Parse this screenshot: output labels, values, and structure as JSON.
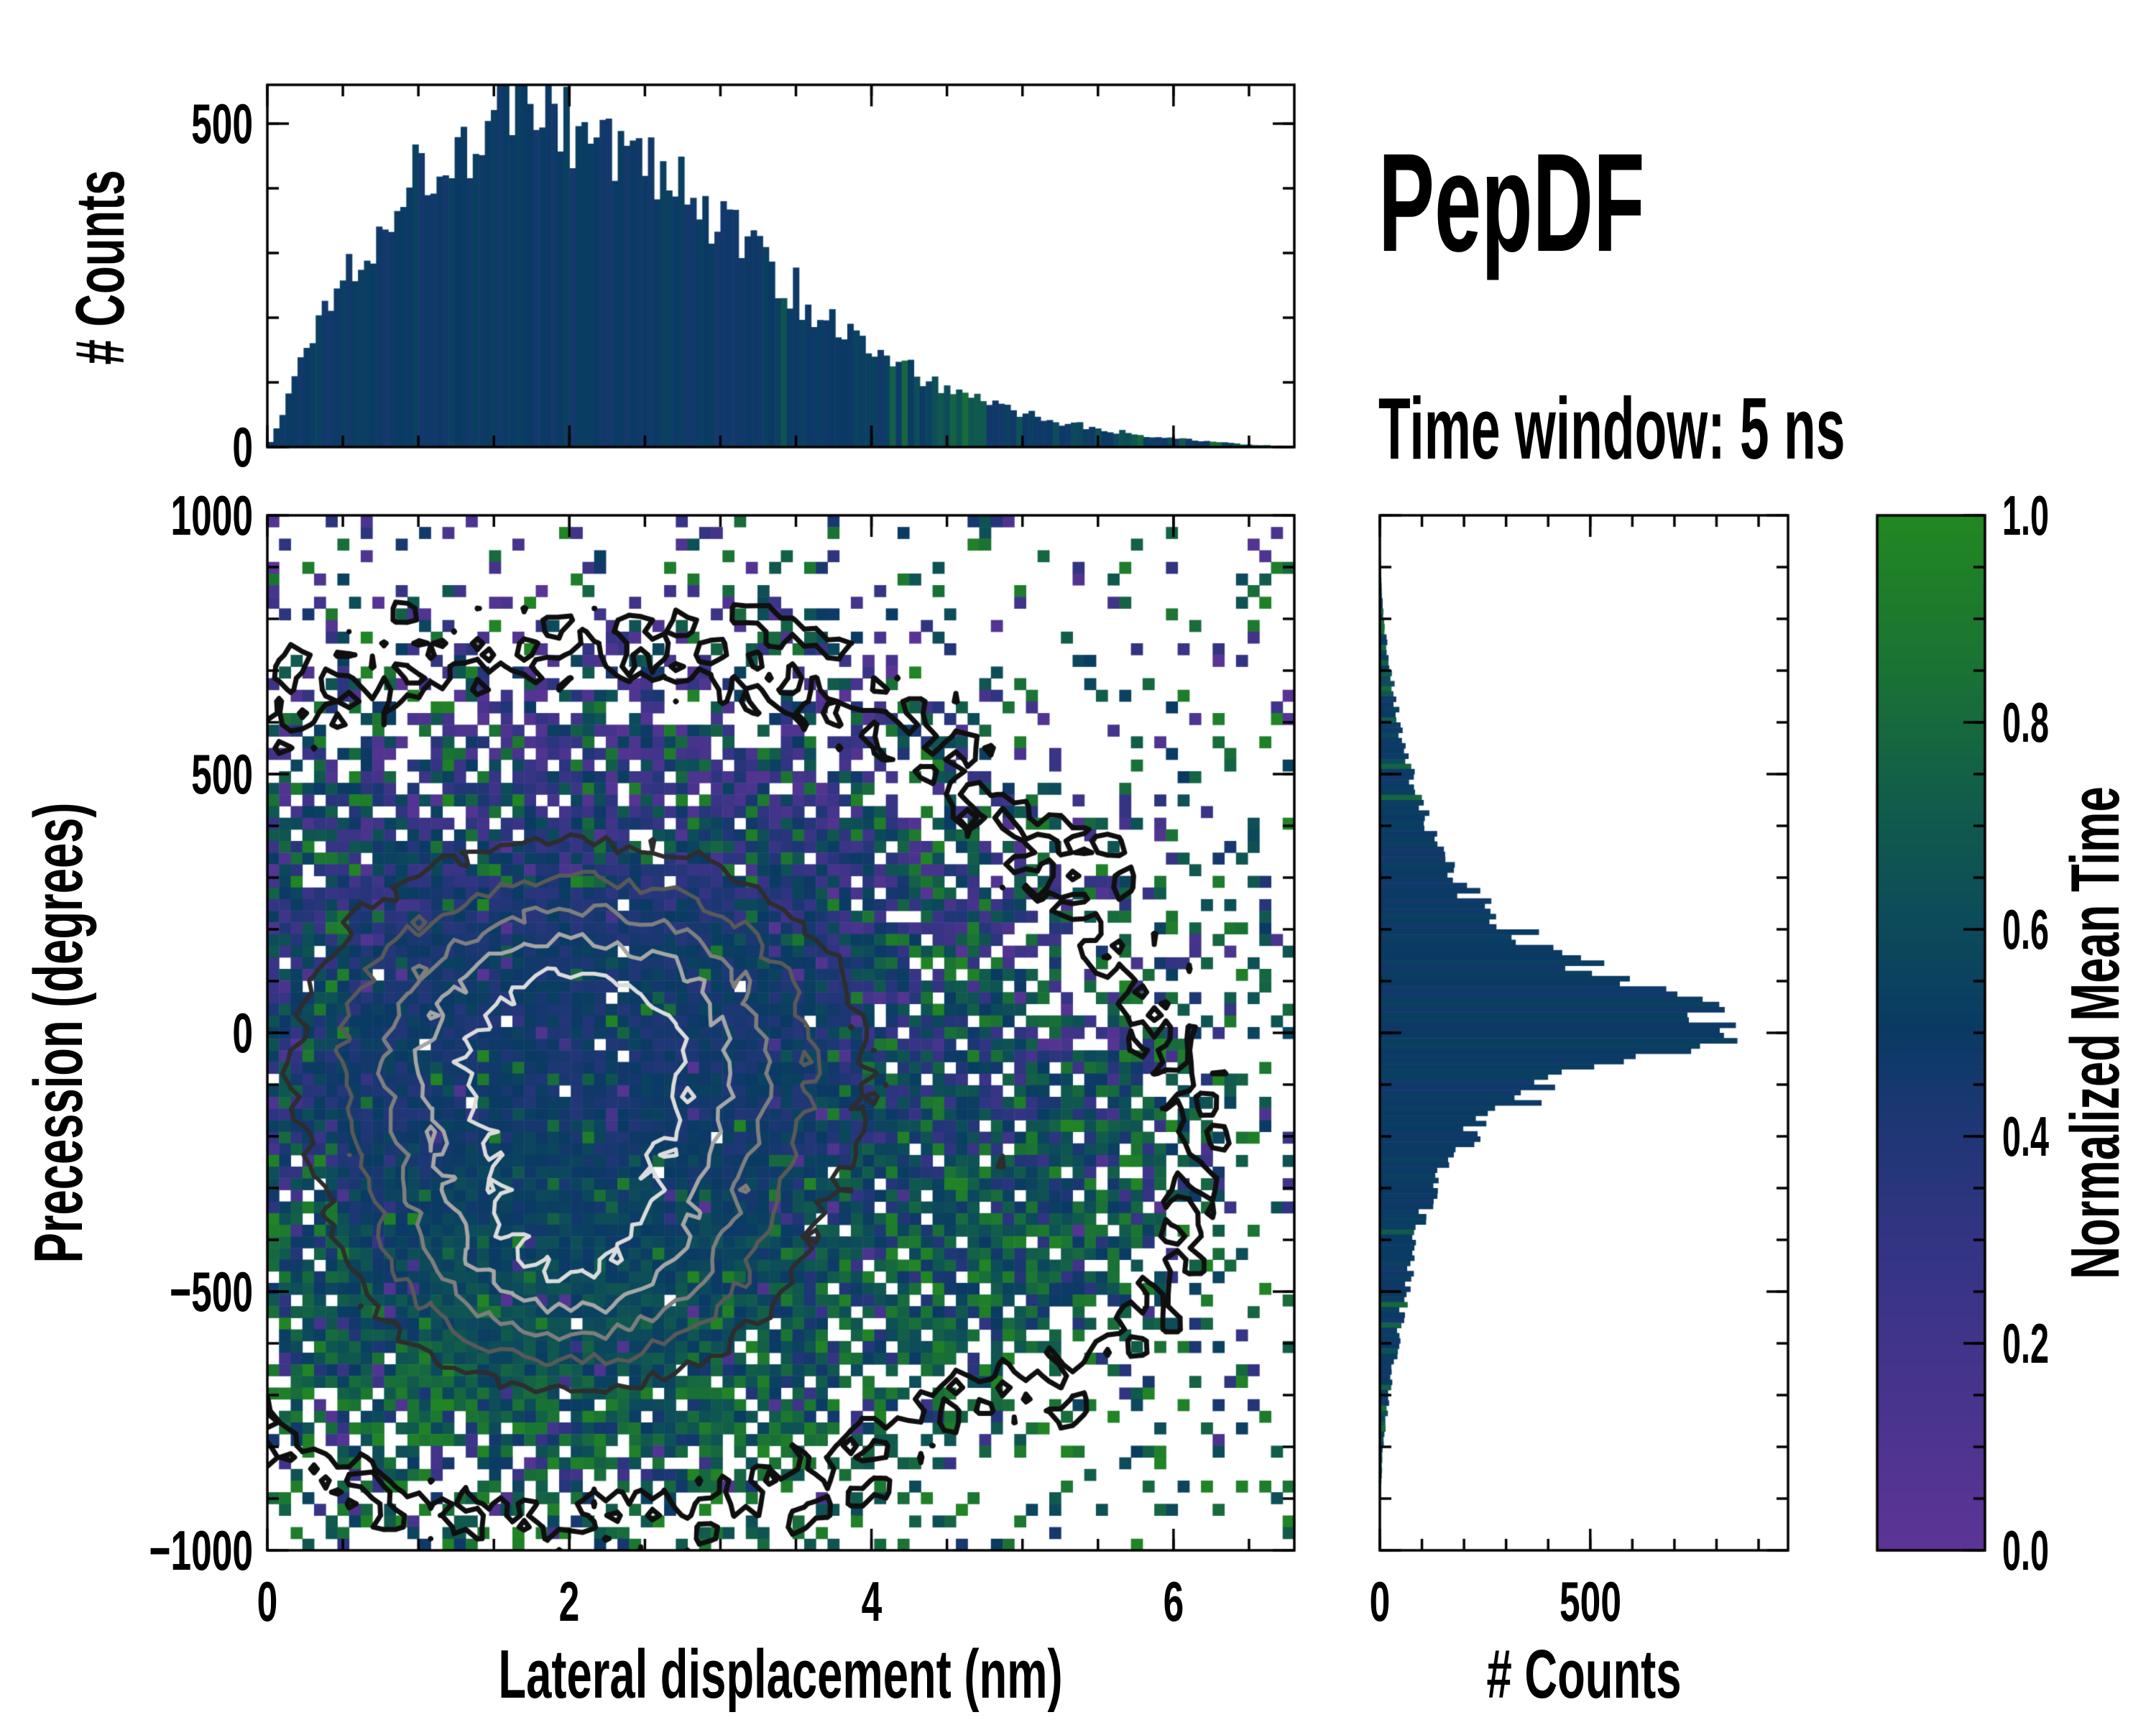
{
  "figure": {
    "title": "PepDF",
    "subtitle": "Time window: 5 ns",
    "background": "#ffffff",
    "frame_color": "#000000"
  },
  "colormap": {
    "stops": [
      {
        "t": 0.0,
        "color": "#5c3496"
      },
      {
        "t": 0.15,
        "color": "#47348c"
      },
      {
        "t": 0.3,
        "color": "#333483"
      },
      {
        "t": 0.42,
        "color": "#1c3773"
      },
      {
        "t": 0.5,
        "color": "#0a3a64"
      },
      {
        "t": 0.62,
        "color": "#0d4d59"
      },
      {
        "t": 0.72,
        "color": "#115c4b"
      },
      {
        "t": 0.85,
        "color": "#1a7235"
      },
      {
        "t": 1.0,
        "color": "#228722"
      }
    ]
  },
  "colorbar": {
    "label": "Normalized Mean Time",
    "ticks": [
      {
        "v": 1.0,
        "label": "1.0"
      },
      {
        "v": 0.8,
        "label": "0.8"
      },
      {
        "v": 0.6,
        "label": "0.6"
      },
      {
        "v": 0.4,
        "label": "0.4"
      },
      {
        "v": 0.2,
        "label": "0.2"
      },
      {
        "v": 0.0,
        "label": "0.0"
      }
    ],
    "minor_step": 0.05,
    "range": [
      0.0,
      1.0
    ]
  },
  "chart_data": [
    {
      "id": "top_histogram",
      "type": "bar",
      "orientation": "vertical",
      "ylabel": "# Counts",
      "xlim": [
        0,
        6.8
      ],
      "ylim": [
        0,
        560
      ],
      "bins": 170,
      "yticks": [
        {
          "v": 0,
          "label": "0"
        },
        {
          "v": 500,
          "label": "500"
        }
      ],
      "xticks": [
        {
          "v": 0
        },
        {
          "v": 2
        },
        {
          "v": 4
        },
        {
          "v": 6
        }
      ],
      "x_minor_step": 0.5,
      "y_minor_step": 100,
      "bar_value_base": 0.5,
      "envelope_x": [
        0,
        0.08,
        0.15,
        0.25,
        0.35,
        0.5,
        0.65,
        0.8,
        1.0,
        1.15,
        1.3,
        1.5,
        1.7,
        1.9,
        2.1,
        2.3,
        2.5,
        2.7,
        2.9,
        3.1,
        3.3,
        3.5,
        3.7,
        3.9,
        4.1,
        4.3,
        4.5,
        4.7,
        4.9,
        5.1,
        5.3,
        5.6,
        5.9,
        6.2,
        6.5,
        6.8
      ],
      "envelope_counts": [
        0,
        35,
        90,
        150,
        205,
        265,
        315,
        370,
        425,
        455,
        480,
        505,
        518,
        512,
        495,
        468,
        432,
        405,
        370,
        330,
        285,
        240,
        200,
        165,
        135,
        112,
        92,
        74,
        60,
        47,
        37,
        25,
        16,
        9,
        4,
        1
      ]
    },
    {
      "id": "joint_heatmap",
      "type": "heatmap",
      "xlabel": "Lateral displacement (nm)",
      "ylabel": "Precession (degrees)",
      "color_label": "Normalized Mean Time",
      "xlim": [
        0,
        6.8
      ],
      "ylim": [
        -1000,
        1000
      ],
      "xticks": [
        {
          "v": 0,
          "label": "0"
        },
        {
          "v": 2,
          "label": "2"
        },
        {
          "v": 4,
          "label": "4"
        },
        {
          "v": 6,
          "label": "6"
        }
      ],
      "yticks": [
        {
          "v": 1000,
          "label": "1000"
        },
        {
          "v": 500,
          "label": "500"
        },
        {
          "v": 0,
          "label": "0"
        },
        {
          "v": -500,
          "label": "−500"
        },
        {
          "v": -1000,
          "label": "−1000"
        }
      ],
      "x_minor_step": 0.5,
      "y_minor_step": 100,
      "grid": {
        "cols": 88,
        "rows": 89
      },
      "empty_color": "#ffffff",
      "density_blobs": [
        {
          "cx": 2.05,
          "cy": -30,
          "sx": 2.0,
          "sy": 430,
          "amp": 1.0
        },
        {
          "cx": 2.0,
          "cy": -500,
          "sx": 1.5,
          "sy": 260,
          "amp": 0.55
        },
        {
          "cx": 5.0,
          "cy": -280,
          "sx": 0.75,
          "sy": 250,
          "amp": 0.3
        }
      ],
      "fill_threshold": 0.05,
      "threshold_jitter": 0.16,
      "outlier_band": [
        0.015,
        0.05
      ],
      "outlier_prob": 0.055,
      "value_model": {
        "base": 0.47,
        "green_shift": 0.22,
        "purple_shift": 0.13,
        "extreme_green_low": 0.62,
        "extreme_purple_high": 0.32
      },
      "contours": {
        "levels": [
          0.05,
          0.42,
          0.56,
          0.68,
          0.79,
          0.9
        ],
        "colors": [
          "#0f0f0f",
          "#2d2d2d",
          "#595959",
          "#7e7e7e",
          "#a6a6a6",
          "#dcdcdc"
        ],
        "widths": [
          7,
          6,
          5.5,
          5.5,
          5.5,
          5.5
        ],
        "noise": 0.035
      },
      "seed": 1337
    },
    {
      "id": "right_histogram",
      "type": "bar",
      "orientation": "horizontal",
      "xlabel": "# Counts",
      "xlim": [
        0,
        970
      ],
      "ylim": [
        -1000,
        1000
      ],
      "bins": 200,
      "xticks": [
        {
          "v": 0,
          "label": "0"
        },
        {
          "v": 500,
          "label": "500"
        }
      ],
      "x_minor_step": 100,
      "y_minor_step": 100,
      "bar_value_base": 0.5,
      "envelope_y": [
        -1000,
        -870,
        -800,
        -740,
        -680,
        -620,
        -560,
        -500,
        -440,
        -380,
        -320,
        -260,
        -210,
        -170,
        -130,
        -90,
        -60,
        -30,
        -10,
        0,
        15,
        40,
        70,
        100,
        140,
        180,
        230,
        280,
        330,
        380,
        430,
        480,
        530,
        580,
        640,
        700,
        760,
        820,
        880,
        1000
      ],
      "envelope_counts": [
        0,
        3,
        8,
        16,
        26,
        38,
        50,
        64,
        78,
        92,
        115,
        150,
        200,
        260,
        340,
        450,
        570,
        700,
        820,
        870,
        830,
        740,
        640,
        545,
        440,
        350,
        265,
        205,
        160,
        125,
        100,
        82,
        66,
        52,
        38,
        26,
        15,
        7,
        3,
        0
      ]
    }
  ]
}
